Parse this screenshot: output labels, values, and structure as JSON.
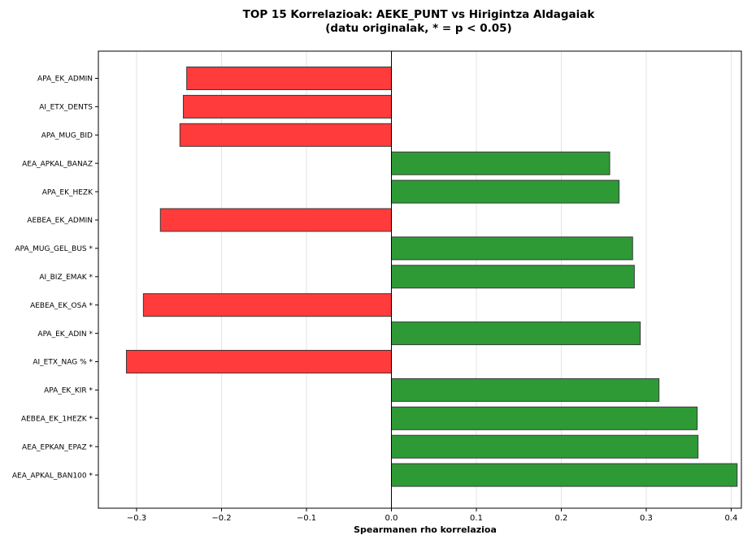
{
  "chart_data": {
    "type": "bar",
    "orientation": "horizontal",
    "title": "TOP 15 Korrelazioak: AEKE_PUNT vs Hirigintza Aldagaiak",
    "subtitle": "(datu originalak, * = p < 0.05)",
    "xlabel": "Spearmanen rho korrelazioa",
    "ylabel": "",
    "xlim": [
      -0.345,
      0.412
    ],
    "xticks": [
      -0.3,
      -0.2,
      -0.1,
      0.0,
      0.1,
      0.2,
      0.3,
      0.4
    ],
    "xtick_labels": [
      "−0.3",
      "−0.2",
      "−0.1",
      "0.0",
      "0.1",
      "0.2",
      "0.3",
      "0.4"
    ],
    "grid": "vertical",
    "colors": {
      "positive": "#2e9a36",
      "negative": "#ff3b3b",
      "edge": "#3a3a3a"
    },
    "categories": [
      "APA_EK_ADMIN",
      "AI_ETX_DENTS",
      "APA_MUG_BID",
      "AEA_APKAL_BANAZ",
      "APA_EK_HEZK",
      "AEBEA_EK_ADMIN",
      "APA_MUG_GEL_BUS *",
      "AI_BIZ_EMAK *",
      "AEBEA_EK_OSA *",
      "APA_EK_ADIN *",
      "AI_ETX_NAG % *",
      "APA_EK_KIR *",
      "AEBEA_EK_1HEZK *",
      "AEA_EPKAN_EPAZ *",
      "AEA_APKAL_BAN100 *"
    ],
    "values": [
      -0.241,
      -0.245,
      -0.249,
      0.257,
      0.268,
      -0.272,
      0.284,
      0.286,
      -0.292,
      0.293,
      -0.312,
      0.315,
      0.36,
      0.361,
      0.407
    ]
  }
}
